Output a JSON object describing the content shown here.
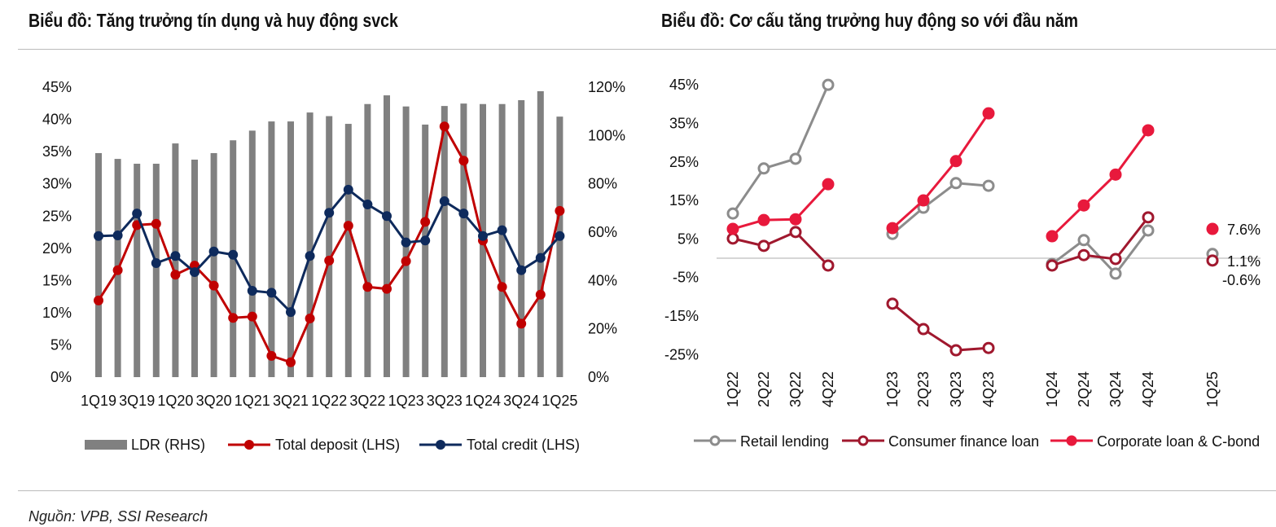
{
  "source": "Nguồn: VPB, SSI Research",
  "chart_data": [
    {
      "type": "bar+line",
      "title": "Biểu đồ: Tăng trưởng tín dụng và huy động svck",
      "categories": [
        "1Q19",
        "2Q19",
        "3Q19",
        "4Q19",
        "1Q20",
        "2Q20",
        "3Q20",
        "4Q20",
        "1Q21",
        "2Q21",
        "3Q21",
        "4Q21",
        "1Q22",
        "2Q22",
        "3Q22",
        "4Q22",
        "1Q23",
        "2Q23",
        "3Q23",
        "4Q23",
        "1Q24",
        "2Q24",
        "3Q24",
        "4Q24",
        "1Q25"
      ],
      "tick_labels": [
        "1Q19",
        "3Q19",
        "1Q20",
        "3Q20",
        "1Q21",
        "3Q21",
        "1Q22",
        "3Q22",
        "1Q23",
        "3Q23",
        "1Q24",
        "3Q24",
        "1Q25"
      ],
      "y_left_ticks": [
        "0%",
        "5%",
        "10%",
        "15%",
        "20%",
        "25%",
        "30%",
        "35%",
        "40%",
        "45%"
      ],
      "y_right_ticks": [
        "0%",
        "20%",
        "40%",
        "60%",
        "80%",
        "100%",
        "120%"
      ],
      "ylim_left": [
        0,
        45
      ],
      "ylim_right": [
        0,
        120
      ],
      "series": [
        {
          "name": "LDR (RHS)",
          "type": "bar",
          "axis": "right",
          "color": "#808080",
          "values": [
            92.7,
            90.3,
            88.3,
            88.3,
            96.7,
            90,
            92.7,
            98,
            102,
            105.8,
            105.8,
            109.5,
            108,
            104.8,
            113,
            116.6,
            112,
            104.5,
            112.2,
            113.2,
            113,
            113,
            114.6,
            118.3,
            107.8
          ]
        },
        {
          "name": "Total deposit (LHS)",
          "type": "line",
          "axis": "left",
          "color": "#c00000",
          "values": [
            11.9,
            16.6,
            23.6,
            23.8,
            15.9,
            17.3,
            14.2,
            9.2,
            9.4,
            3.3,
            2.3,
            9.1,
            18.1,
            23.5,
            14.0,
            13.7,
            18.0,
            24.1,
            38.9,
            33.6,
            21.2,
            14.0,
            8.3,
            12.8,
            25.8
          ]
        },
        {
          "name": "Total credit (LHS)",
          "type": "line",
          "axis": "left",
          "color": "#0e2a5c",
          "values": [
            21.9,
            22.0,
            25.4,
            17.7,
            18.8,
            16.3,
            19.5,
            19.0,
            13.4,
            13.1,
            10.1,
            18.8,
            25.5,
            29.1,
            26.8,
            25.0,
            20.9,
            21.2,
            27.3,
            25.4,
            21.9,
            22.8,
            16.6,
            18.5,
            21.9
          ]
        }
      ]
    },
    {
      "type": "line",
      "title": "Biểu đồ: Cơ cấu tăng trưởng huy động so với đầu năm",
      "categories": [
        "1Q22",
        "2Q22",
        "3Q22",
        "4Q22",
        "1Q23",
        "2Q23",
        "3Q23",
        "4Q23",
        "1Q24",
        "2Q24",
        "3Q24",
        "4Q24",
        "1Q25"
      ],
      "y_ticks": [
        "-25%",
        "-15%",
        "-5%",
        "5%",
        "15%",
        "25%",
        "35%",
        "45%"
      ],
      "ylim": [
        -25,
        45
      ],
      "end_labels": [
        "7.6%",
        "1.1%",
        "-0.6%"
      ],
      "series": [
        {
          "name": "Retail lending",
          "color": "#8c8c8c",
          "marker": "open",
          "values": [
            11.6,
            23.3,
            25.8,
            45,
            6.3,
            13.1,
            19.5,
            18.8,
            -1.5,
            4.7,
            -4,
            7.2,
            1.1
          ]
        },
        {
          "name": "Consumer finance loan",
          "color": "#a0182e",
          "marker": "open",
          "values": [
            5.1,
            3.2,
            6.8,
            -1.9,
            -11.8,
            -18.4,
            -23.9,
            -23.3,
            -1.9,
            0.8,
            -0.2,
            10.6,
            -0.6
          ]
        },
        {
          "name": "Corporate loan & C-bond",
          "color": "#e8193c",
          "marker": "filled",
          "values": [
            7.6,
            9.9,
            10.1,
            19.2,
            7.8,
            15,
            25.2,
            37.6,
            5.7,
            13.7,
            21.7,
            33.2,
            7.6
          ]
        }
      ]
    }
  ]
}
